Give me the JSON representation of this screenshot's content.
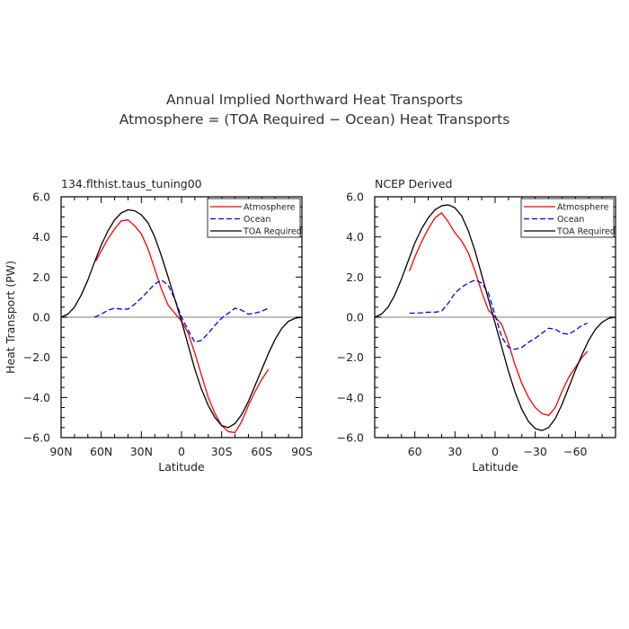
{
  "figure": {
    "title_line1": "Annual Implied Northward Heat Transports",
    "title_line2": "Atmosphere = (TOA Required − Ocean) Heat Transports"
  },
  "chart_data": [
    {
      "type": "line",
      "title": "134.flthist.taus_tuning00",
      "xlabel": "Latitude",
      "ylabel": "Heat Transport (PW)",
      "xlim": [
        90,
        -90
      ],
      "ylim": [
        -6,
        6
      ],
      "xticks": [
        90,
        60,
        30,
        0,
        -30,
        -60,
        -90
      ],
      "xtick_labels": [
        "90N",
        "60N",
        "30N",
        "0",
        "30S",
        "60S",
        "90S"
      ],
      "yticks": [
        -6,
        -4,
        -2,
        0,
        2,
        4,
        6
      ],
      "ytick_labels": [
        "−6.0",
        "−4.0",
        "−2.0",
        "0.0",
        "2.0",
        "4.0",
        "6.0"
      ],
      "legend_position": "top-right",
      "series": [
        {
          "name": "Atmosphere",
          "color": "#ff0000",
          "dash": "solid",
          "x": [
            64,
            60,
            55,
            50,
            45,
            40,
            35,
            30,
            25,
            20,
            15,
            10,
            5,
            0,
            -5,
            -10,
            -15,
            -20,
            -25,
            -30,
            -35,
            -40,
            -45,
            -50,
            -55,
            -60,
            -65
          ],
          "y": [
            2.8,
            3.3,
            3.9,
            4.4,
            4.8,
            4.85,
            4.55,
            4.15,
            3.4,
            2.4,
            1.4,
            0.6,
            0.2,
            -0.2,
            -0.8,
            -1.8,
            -2.9,
            -4.0,
            -4.8,
            -5.4,
            -5.7,
            -5.75,
            -5.2,
            -4.4,
            -3.7,
            -3.1,
            -2.6
          ]
        },
        {
          "name": "Ocean",
          "color": "#0000ff",
          "dash": "dashed",
          "x": [
            65,
            60,
            55,
            50,
            45,
            40,
            35,
            30,
            25,
            20,
            15,
            10,
            5,
            0,
            -5,
            -10,
            -15,
            -20,
            -25,
            -30,
            -35,
            -40,
            -45,
            -50,
            -55,
            -60,
            -65
          ],
          "y": [
            0.0,
            0.15,
            0.35,
            0.45,
            0.4,
            0.4,
            0.65,
            0.95,
            1.3,
            1.65,
            1.85,
            1.6,
            0.9,
            0.0,
            -0.65,
            -1.25,
            -1.15,
            -0.8,
            -0.4,
            -0.05,
            0.2,
            0.45,
            0.35,
            0.15,
            0.2,
            0.3,
            0.45
          ]
        },
        {
          "name": "TOA Required",
          "color": "#000000",
          "dash": "solid",
          "x": [
            90,
            85,
            80,
            75,
            70,
            65,
            60,
            55,
            50,
            45,
            40,
            35,
            30,
            25,
            20,
            15,
            10,
            5,
            0,
            -5,
            -10,
            -15,
            -20,
            -25,
            -30,
            -35,
            -40,
            -45,
            -50,
            -55,
            -60,
            -65,
            -70,
            -75,
            -80,
            -85,
            -90
          ],
          "y": [
            0.0,
            0.15,
            0.5,
            1.1,
            1.85,
            2.75,
            3.6,
            4.3,
            4.85,
            5.2,
            5.35,
            5.3,
            5.1,
            4.7,
            4.0,
            3.05,
            2.0,
            0.9,
            -0.2,
            -1.4,
            -2.6,
            -3.6,
            -4.4,
            -5.0,
            -5.4,
            -5.5,
            -5.3,
            -4.85,
            -4.2,
            -3.4,
            -2.6,
            -1.8,
            -1.1,
            -0.55,
            -0.2,
            -0.05,
            0.0
          ]
        }
      ]
    },
    {
      "type": "line",
      "title": "NCEP Derived",
      "xlabel": "Latitude",
      "ylabel": "",
      "xlim": [
        90,
        -90
      ],
      "ylim": [
        -6,
        6
      ],
      "xticks": [
        60,
        30,
        0,
        -30,
        -60
      ],
      "xtick_labels": [
        "60",
        "30",
        "0",
        "−30",
        "−60"
      ],
      "yticks": [
        -6,
        -4,
        -2,
        0,
        2,
        4,
        6
      ],
      "ytick_labels": [
        "−6.0",
        "−4.0",
        "−2.0",
        "0.0",
        "2.0",
        "4.0",
        "6.0"
      ],
      "legend_position": "top-right",
      "series": [
        {
          "name": "Atmosphere",
          "color": "#ff0000",
          "dash": "solid",
          "x": [
            64,
            60,
            55,
            50,
            45,
            40,
            35,
            30,
            25,
            20,
            15,
            10,
            5,
            0,
            -5,
            -10,
            -15,
            -20,
            -25,
            -30,
            -35,
            -40,
            -45,
            -50,
            -55,
            -60,
            -65,
            -69
          ],
          "y": [
            2.3,
            3.0,
            3.75,
            4.4,
            4.95,
            5.2,
            4.75,
            4.2,
            3.8,
            3.2,
            2.3,
            1.25,
            0.35,
            0.0,
            -0.35,
            -1.3,
            -2.4,
            -3.3,
            -4.0,
            -4.5,
            -4.8,
            -4.9,
            -4.5,
            -3.7,
            -3.0,
            -2.5,
            -2.0,
            -1.7
          ]
        },
        {
          "name": "Ocean",
          "color": "#0000ff",
          "dash": "dashed",
          "x": [
            64,
            60,
            55,
            50,
            45,
            40,
            35,
            30,
            25,
            20,
            15,
            10,
            5,
            0,
            -5,
            -10,
            -15,
            -20,
            -25,
            -30,
            -35,
            -40,
            -45,
            -50,
            -55,
            -60,
            -65,
            -69
          ],
          "y": [
            0.2,
            0.2,
            0.22,
            0.25,
            0.25,
            0.3,
            0.7,
            1.2,
            1.5,
            1.7,
            1.85,
            1.7,
            1.2,
            0.1,
            -1.0,
            -1.5,
            -1.6,
            -1.5,
            -1.25,
            -1.05,
            -0.8,
            -0.55,
            -0.6,
            -0.8,
            -0.85,
            -0.65,
            -0.4,
            -0.3
          ]
        },
        {
          "name": "TOA Required",
          "color": "#000000",
          "dash": "solid",
          "x": [
            90,
            85,
            80,
            75,
            70,
            65,
            60,
            55,
            50,
            45,
            40,
            35,
            30,
            25,
            20,
            15,
            10,
            5,
            0,
            -5,
            -10,
            -15,
            -20,
            -25,
            -30,
            -35,
            -40,
            -45,
            -50,
            -55,
            -60,
            -65,
            -70,
            -75,
            -80,
            -85,
            -90
          ],
          "y": [
            0.0,
            0.15,
            0.5,
            1.1,
            1.9,
            2.8,
            3.7,
            4.4,
            4.95,
            5.35,
            5.55,
            5.6,
            5.45,
            5.05,
            4.3,
            3.3,
            2.1,
            0.9,
            -0.3,
            -1.5,
            -2.7,
            -3.75,
            -4.6,
            -5.2,
            -5.55,
            -5.65,
            -5.5,
            -5.05,
            -4.35,
            -3.5,
            -2.65,
            -1.85,
            -1.15,
            -0.6,
            -0.25,
            -0.05,
            0.0
          ]
        }
      ]
    }
  ]
}
